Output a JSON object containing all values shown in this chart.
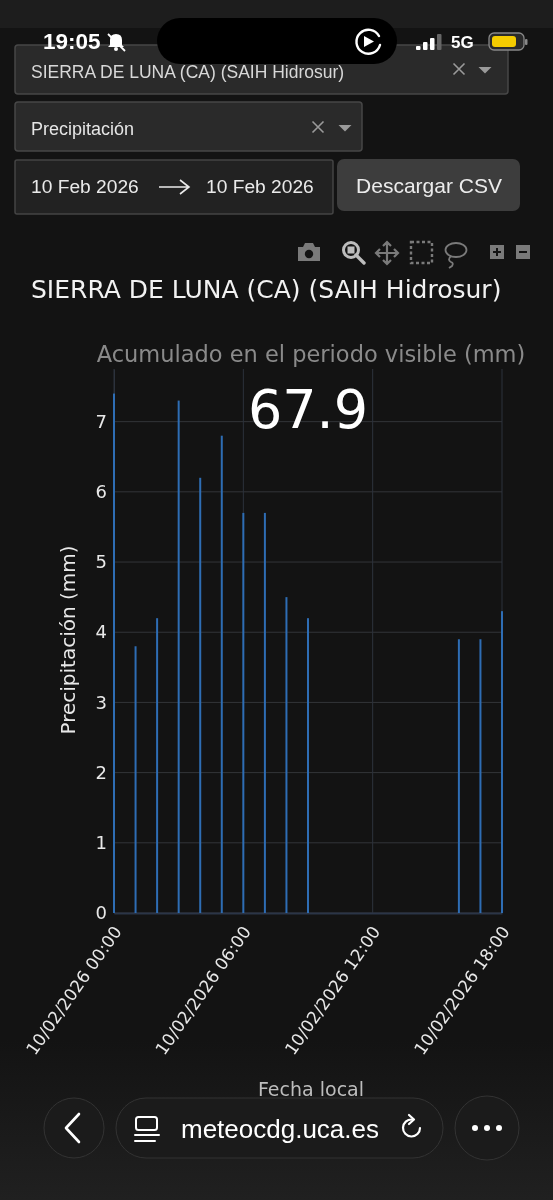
{
  "chart_data": {
    "type": "bar",
    "title": "SIERRA DE LUNA (CA) (SAIH Hidrosur)",
    "xlabel": "Fecha local",
    "ylabel": "Precipitación (mm)",
    "annotations": [
      "19:05",
      "5G",
      "SIERRA DE LUNA (CA) (SAIH Hidrosur)",
      "Precipitación",
      "10 Feb 2026",
      "10 Feb 2026",
      "Descargar CSV",
      "Acumulado en el periodo visible (mm)",
      "67.9",
      "meteocdg.uca.es"
    ],
    "x": [
      "2026-02-10T00:00",
      "2026-02-10T01:00",
      "2026-02-10T02:00",
      "2026-02-10T03:00",
      "2026-02-10T04:00",
      "2026-02-10T05:00",
      "2026-02-10T06:00",
      "2026-02-10T07:00",
      "2026-02-10T08:00",
      "2026-02-10T09:00",
      "2026-02-10T16:00",
      "2026-02-10T17:00",
      "2026-02-10T18:00"
    ],
    "values": [
      7.4,
      3.8,
      4.2,
      7.3,
      6.2,
      6.8,
      5.7,
      5.7,
      4.5,
      4.2,
      3.9,
      3.9,
      4.3
    ],
    "color": "#2e6db4",
    "xlim": [
      "2026-02-10T00:00",
      "2026-02-10T18:00"
    ],
    "xticks": [
      {
        "value": "2026-02-10T00:00",
        "label": "10/02/2026 00:00"
      },
      {
        "value": "2026-02-10T06:00",
        "label": "10/02/2026 06:00"
      },
      {
        "value": "2026-02-10T12:00",
        "label": "10/02/2026 12:00"
      },
      {
        "value": "2026-02-10T18:00",
        "label": "10/02/2026 18:00"
      }
    ],
    "ylim": [
      0,
      7.75
    ],
    "yticks": [
      0,
      1,
      2,
      3,
      4,
      5,
      6,
      7
    ],
    "grid": true
  }
}
